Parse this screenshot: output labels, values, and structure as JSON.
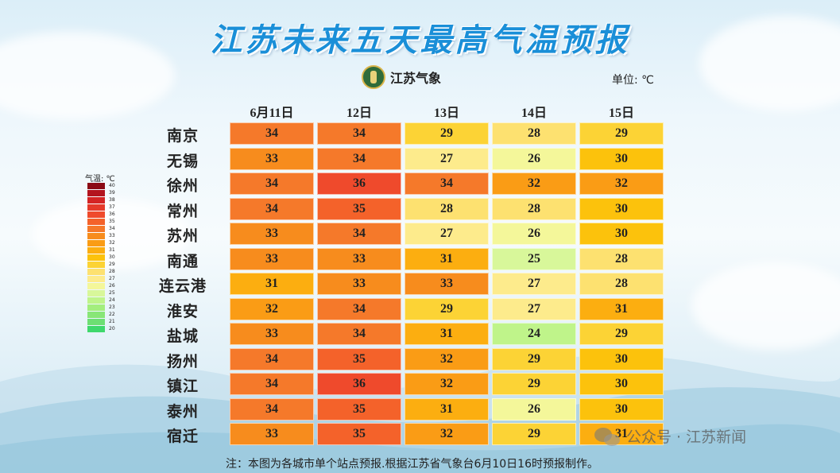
{
  "title": "江苏未来五天最高气温预报",
  "logo_text": "江苏气象",
  "unit_label": "单位: ℃",
  "note": "注：本图为各城市单个站点预报.根据江苏省气象台6月10日16时预报制作。",
  "watermark": "公众号 · 江苏新闻",
  "legend": {
    "title": "气温: ℃",
    "ticks": [
      "40",
      "39",
      "38",
      "37",
      "36",
      "35",
      "34",
      "33",
      "32",
      "31",
      "30",
      "29",
      "28",
      "27",
      "26",
      "25",
      "24",
      "23",
      "22",
      "21",
      "20"
    ],
    "colors": [
      "#8b0a14",
      "#b3141e",
      "#d42424",
      "#e53a2a",
      "#ef4a2c",
      "#f4622a",
      "#f5792a",
      "#f78c1d",
      "#fa9c15",
      "#fcae10",
      "#fcc20c",
      "#fcd335",
      "#fde170",
      "#fdeb8c",
      "#f4f79a",
      "#d8f79a",
      "#bff48a",
      "#a3ee7d",
      "#88e677",
      "#6ddf73",
      "#3fd86c"
    ]
  },
  "chart_data": {
    "type": "heatmap",
    "title": "江苏未来五天最高气温预报",
    "unit": "℃",
    "columns": [
      "6月11日",
      "12日",
      "13日",
      "14日",
      "15日"
    ],
    "rows": [
      "南京",
      "无锡",
      "徐州",
      "常州",
      "苏州",
      "南通",
      "连云港",
      "淮安",
      "盐城",
      "扬州",
      "镇江",
      "泰州",
      "宿迁"
    ],
    "values": [
      [
        34,
        34,
        29,
        28,
        29
      ],
      [
        33,
        34,
        27,
        26,
        30
      ],
      [
        34,
        36,
        34,
        32,
        32
      ],
      [
        34,
        35,
        28,
        28,
        30
      ],
      [
        33,
        34,
        27,
        26,
        30
      ],
      [
        33,
        33,
        31,
        25,
        28
      ],
      [
        31,
        33,
        33,
        27,
        28
      ],
      [
        32,
        34,
        29,
        27,
        31
      ],
      [
        33,
        34,
        31,
        24,
        29
      ],
      [
        34,
        35,
        32,
        29,
        30
      ],
      [
        34,
        36,
        32,
        29,
        30
      ],
      [
        34,
        35,
        31,
        26,
        30
      ],
      [
        33,
        35,
        32,
        29,
        31
      ]
    ]
  }
}
